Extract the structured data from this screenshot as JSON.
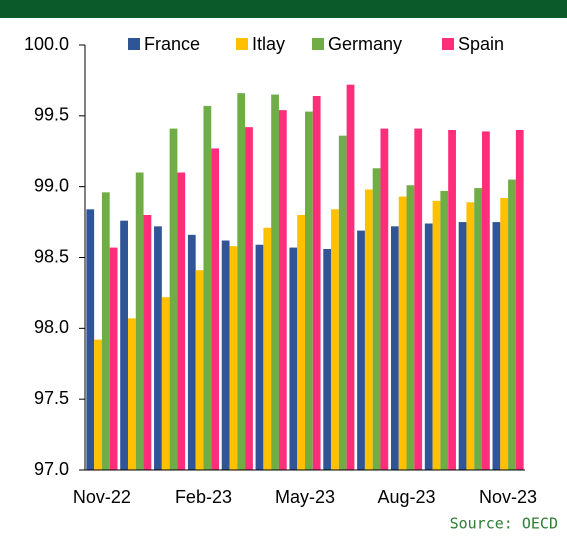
{
  "chart_data": {
    "type": "bar",
    "source": "Source: OECD",
    "categories": [
      "Nov-22",
      null,
      null,
      "Feb-23",
      null,
      null,
      "May-23",
      null,
      null,
      "Aug-23",
      null,
      null,
      "Nov-23"
    ],
    "series": [
      {
        "name": "France",
        "color": "#2f5597",
        "values": [
          98.84,
          98.76,
          98.72,
          98.66,
          98.62,
          98.59,
          98.57,
          98.56,
          98.69,
          98.72,
          98.74,
          98.75,
          98.75
        ]
      },
      {
        "name": "Itlay",
        "color": "#ffc000",
        "values": [
          97.92,
          98.07,
          98.22,
          98.41,
          98.58,
          98.71,
          98.8,
          98.84,
          98.98,
          98.93,
          98.9,
          98.89,
          98.92
        ]
      },
      {
        "name": "Germany",
        "color": "#70ad47",
        "values": [
          98.96,
          99.1,
          99.41,
          99.57,
          99.66,
          99.65,
          99.53,
          99.36,
          99.13,
          99.01,
          98.97,
          98.99,
          99.05
        ]
      },
      {
        "name": "Spain",
        "color": "#ff2d7a",
        "values": [
          98.57,
          98.8,
          99.1,
          99.27,
          99.42,
          99.54,
          99.64,
          99.72,
          99.41,
          99.41,
          99.4,
          99.39,
          99.4
        ]
      }
    ],
    "ylim": [
      97,
      100
    ],
    "yticks": [
      {
        "value": 97,
        "label": "97.0"
      },
      97.5,
      {
        "value": 98,
        "label": "98.0"
      },
      98.5,
      {
        "value": 99,
        "label": "99.0"
      },
      99.5,
      {
        "value": 100,
        "label": "100.0"
      }
    ],
    "grid": false,
    "legend": "top"
  }
}
